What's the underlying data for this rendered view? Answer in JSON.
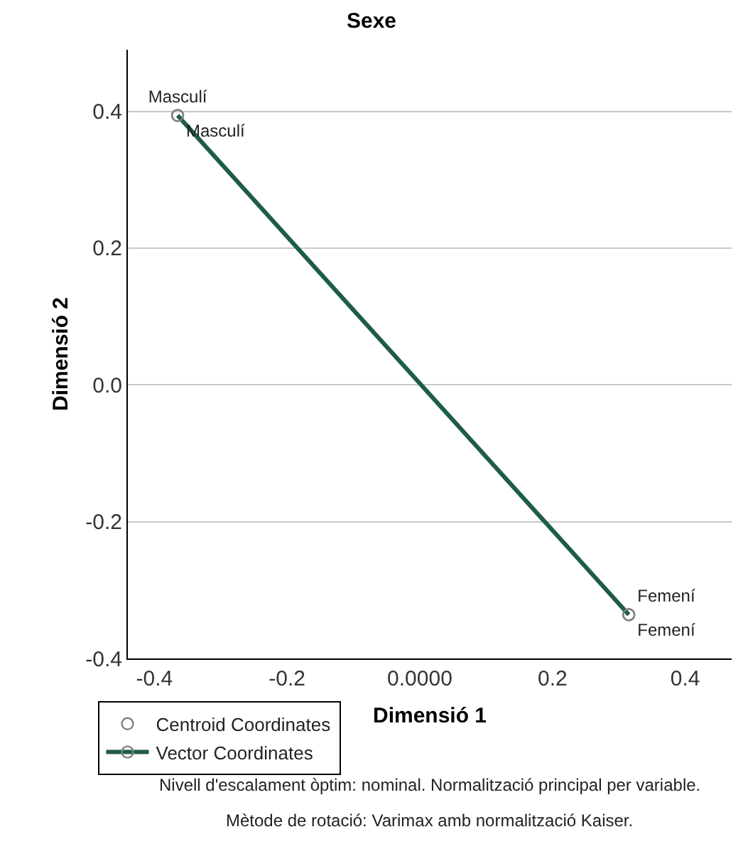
{
  "chart_data": {
    "type": "scatter",
    "title": "Sexe",
    "xlabel": "Dimensió 1",
    "ylabel": "Dimensió 2",
    "x": [
      -0.365,
      0.315
    ],
    "series": [
      {
        "name": "Centroid Coordinates",
        "color": "#808080",
        "values": [
          0.394,
          -0.336
        ],
        "marker": "circle",
        "value_labels": [
          "Masculí",
          "Femení"
        ]
      },
      {
        "name": "Vector Coordinates",
        "type": "line",
        "color": "#1e5c4a",
        "values": [
          0.394,
          -0.336
        ],
        "marker": "circle",
        "value_labels": [
          "Masculí",
          "Femení"
        ]
      }
    ],
    "xlim": [
      -0.44,
      0.47
    ],
    "ylim": [
      -0.4,
      0.49
    ],
    "xticks": [
      -0.4,
      -0.2,
      {
        "value": 0,
        "label": "0.0000"
      },
      0.2,
      0.4
    ],
    "yticks": [
      -0.4,
      -0.2,
      {
        "value": 0,
        "label": "0.0"
      },
      0.2,
      0.4
    ],
    "grid": "y",
    "legend": "bottom left",
    "annotations": [
      "Nivell d'escalament òptim: nominal. Normalització principal per variable.",
      "Mètode de rotació: Varimax amb normalització Kaiser."
    ]
  }
}
